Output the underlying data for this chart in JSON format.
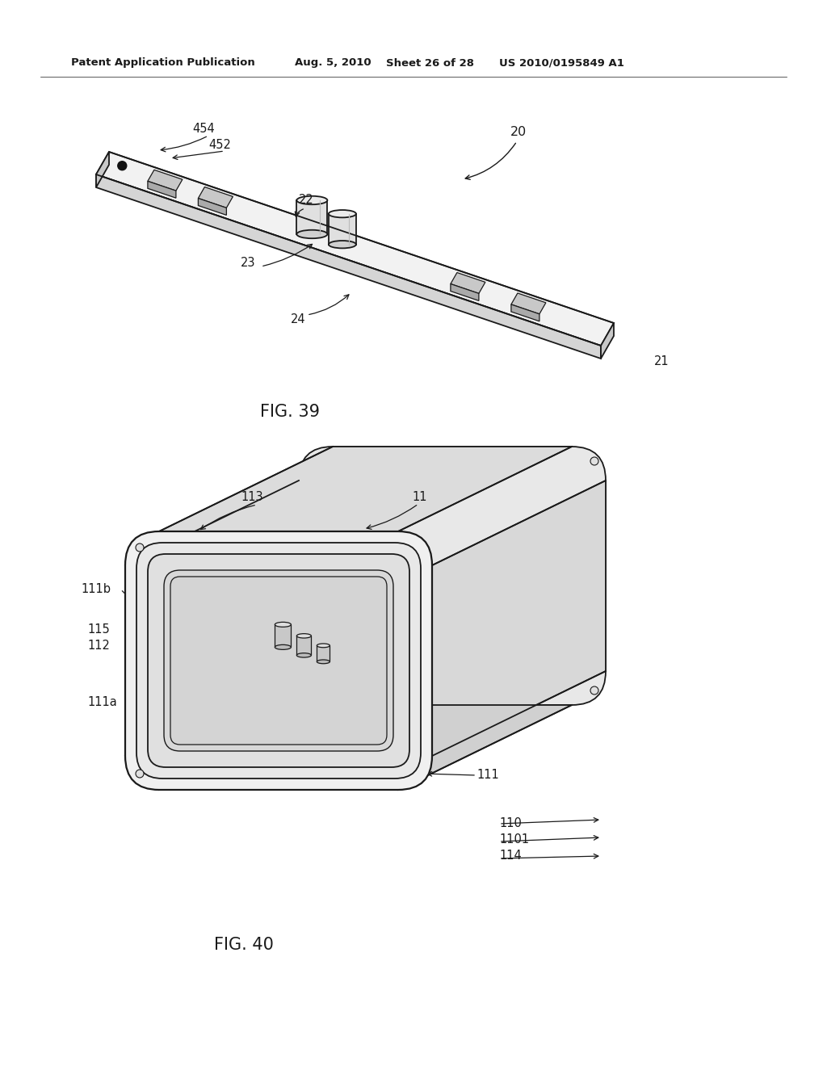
{
  "background_color": "#ffffff",
  "header_text": "Patent Application Publication",
  "header_date": "Aug. 5, 2010",
  "header_sheet": "Sheet 26 of 28",
  "header_patent": "US 2010/0195849 A1",
  "fig39_caption": "FIG. 39",
  "fig40_caption": "FIG. 40",
  "line_color": "#1a1a1a",
  "label_color": "#000000"
}
